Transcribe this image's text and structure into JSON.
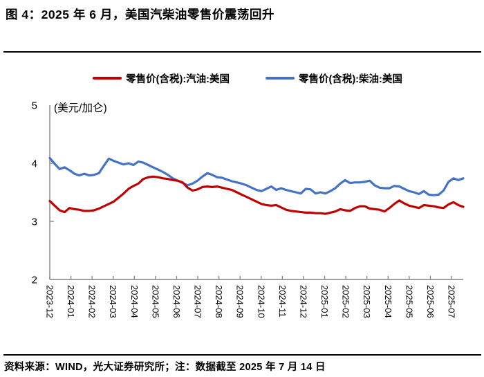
{
  "page": {
    "title": "图 4：2025 年 6 月，美国汽柴油零售价震荡回升",
    "footer": "资料来源：WIND，光大证券研究所；注：数据截至 2025 年 7 月 14 日"
  },
  "chart_data": {
    "type": "line",
    "unit_label": "(美元/加仑)",
    "ylim": [
      2,
      5
    ],
    "yticks": [
      5,
      4,
      3,
      2
    ],
    "grid": false,
    "legend_position": "top",
    "axis_color": "#808080",
    "x_tick_labels": [
      "2023-12",
      "2024-01",
      "2024-02",
      "2024-03",
      "2024-04",
      "2024-05",
      "2024-06",
      "2024-07",
      "2024-08",
      "2024-09",
      "2024-10",
      "2024-11",
      "2024-12",
      "2025-01",
      "2025-02",
      "2025-03",
      "2025-04",
      "2025-05",
      "2025-06",
      "2025-07"
    ],
    "series": [
      {
        "name": "零售价(含税):汽油:美国",
        "color": "#c00000",
        "values": [
          3.35,
          3.27,
          3.19,
          3.16,
          3.23,
          3.21,
          3.2,
          3.18,
          3.18,
          3.19,
          3.22,
          3.26,
          3.3,
          3.34,
          3.41,
          3.48,
          3.56,
          3.61,
          3.65,
          3.73,
          3.76,
          3.77,
          3.76,
          3.74,
          3.73,
          3.71,
          3.7,
          3.67,
          3.58,
          3.53,
          3.55,
          3.59,
          3.6,
          3.59,
          3.6,
          3.58,
          3.56,
          3.54,
          3.5,
          3.46,
          3.42,
          3.38,
          3.34,
          3.3,
          3.28,
          3.27,
          3.28,
          3.24,
          3.2,
          3.18,
          3.17,
          3.16,
          3.15,
          3.15,
          3.14,
          3.14,
          3.13,
          3.15,
          3.17,
          3.21,
          3.19,
          3.18,
          3.23,
          3.26,
          3.26,
          3.22,
          3.21,
          3.2,
          3.17,
          3.23,
          3.3,
          3.36,
          3.31,
          3.27,
          3.25,
          3.23,
          3.28,
          3.27,
          3.26,
          3.24,
          3.23,
          3.29,
          3.33,
          3.28,
          3.25
        ]
      },
      {
        "name": "零售价(含税):柴油:美国",
        "color": "#4472c4",
        "values": [
          4.09,
          3.99,
          3.9,
          3.93,
          3.88,
          3.82,
          3.79,
          3.82,
          3.79,
          3.8,
          3.83,
          3.96,
          4.08,
          4.04,
          4.01,
          3.98,
          4.0,
          3.97,
          4.03,
          4.01,
          3.97,
          3.93,
          3.89,
          3.85,
          3.8,
          3.74,
          3.7,
          3.66,
          3.62,
          3.65,
          3.7,
          3.77,
          3.83,
          3.8,
          3.76,
          3.75,
          3.72,
          3.69,
          3.67,
          3.65,
          3.62,
          3.58,
          3.54,
          3.52,
          3.56,
          3.6,
          3.54,
          3.57,
          3.54,
          3.52,
          3.5,
          3.48,
          3.56,
          3.55,
          3.48,
          3.5,
          3.48,
          3.52,
          3.57,
          3.65,
          3.71,
          3.66,
          3.67,
          3.67,
          3.68,
          3.7,
          3.62,
          3.58,
          3.57,
          3.57,
          3.61,
          3.6,
          3.56,
          3.52,
          3.5,
          3.47,
          3.52,
          3.46,
          3.45,
          3.46,
          3.53,
          3.68,
          3.74,
          3.71,
          3.74
        ]
      }
    ]
  }
}
